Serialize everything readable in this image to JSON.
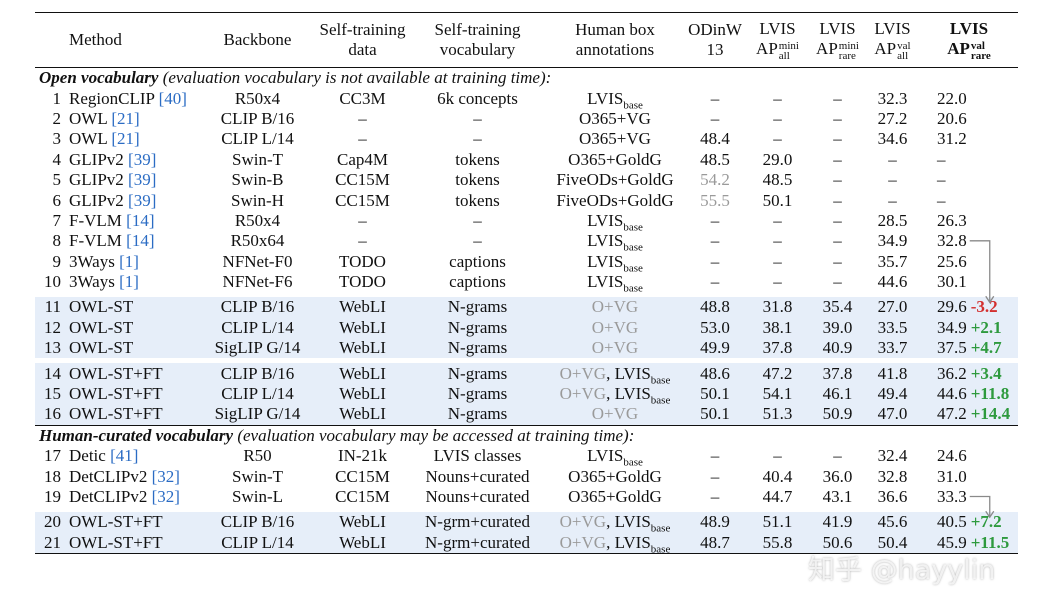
{
  "table": {
    "columns": [
      {
        "lines": [
          "Method"
        ]
      },
      {
        "lines": [
          "Backbone"
        ]
      },
      {
        "lines": [
          "Self-training",
          "data"
        ]
      },
      {
        "lines": [
          "Self-training",
          "vocabulary"
        ]
      },
      {
        "lines": [
          "Human box",
          "annotations"
        ]
      },
      {
        "lines": [
          "ODinW",
          "13"
        ]
      },
      {
        "lines": [
          "LVIS"
        ],
        "ap": {
          "text": "AP",
          "sup": "mini",
          "sub": "all"
        }
      },
      {
        "lines": [
          "LVIS"
        ],
        "ap": {
          "text": "AP",
          "sup": "mini",
          "sub": "rare"
        }
      },
      {
        "lines": [
          "LVIS"
        ],
        "ap": {
          "text": "AP",
          "sup": "val",
          "sub": "all"
        }
      },
      {
        "lines": [
          "LVIS"
        ],
        "ap": {
          "text": "AP",
          "sup": "val",
          "sub": "rare"
        },
        "bold": true
      }
    ],
    "sections": [
      {
        "title": "Open vocabulary",
        "note": "(evaluation vocabulary is not available at training time):",
        "groups": [
          {
            "shaded": false,
            "rows": [
              [
                "1",
                "RegionCLIP",
                "[40]",
                "R50x4",
                "CC3M",
                "6k concepts",
                [
                  {
                    "text": "LVIS",
                    "sub": "base"
                  }
                ],
                "–",
                "–",
                "–",
                "32.3",
                "22.0"
              ],
              [
                "2",
                "OWL",
                "[21]",
                "CLIP B/16",
                "–",
                "–",
                [
                  {
                    "text": "O365+VG"
                  }
                ],
                "–",
                "–",
                "–",
                "27.2",
                "20.6"
              ],
              [
                "3",
                "OWL",
                "[21]",
                "CLIP L/14",
                "–",
                "–",
                [
                  {
                    "text": "O365+VG"
                  }
                ],
                "48.4",
                "–",
                "–",
                "34.6",
                "31.2"
              ],
              [
                "4",
                "GLIPv2",
                "[39]",
                "Swin-T",
                "Cap4M",
                "tokens",
                [
                  {
                    "text": "O365+GoldG"
                  }
                ],
                "48.5",
                "29.0",
                "–",
                "–",
                "–"
              ],
              [
                "5",
                "GLIPv2",
                "[39]",
                "Swin-B",
                "CC15M",
                "tokens",
                [
                  {
                    "text": "FiveODs+GoldG"
                  }
                ],
                {
                  "text": "54.2",
                  "gray": true
                },
                "48.5",
                "–",
                "–",
                "–"
              ],
              [
                "6",
                "GLIPv2",
                "[39]",
                "Swin-H",
                "CC15M",
                "tokens",
                [
                  {
                    "text": "FiveODs+GoldG"
                  }
                ],
                {
                  "text": "55.5",
                  "gray": true
                },
                "50.1",
                "–",
                "–",
                "–"
              ],
              [
                "7",
                "F-VLM",
                "[14]",
                "R50x4",
                "–",
                "–",
                [
                  {
                    "text": "LVIS",
                    "sub": "base"
                  }
                ],
                "–",
                "–",
                "–",
                "28.5",
                "26.3"
              ],
              [
                "8",
                "F-VLM",
                "[14]",
                "R50x64",
                "–",
                "–",
                [
                  {
                    "text": "LVIS",
                    "sub": "base"
                  }
                ],
                "–",
                "–",
                "–",
                "34.9",
                "32.8"
              ],
              [
                "9",
                "3Ways",
                "[1]",
                "NFNet-F0",
                "TODO",
                "captions",
                [
                  {
                    "text": "LVIS",
                    "sub": "base"
                  }
                ],
                "–",
                "–",
                "–",
                "35.7",
                "25.6"
              ],
              [
                "10",
                "3Ways",
                "[1]",
                "NFNet-F6",
                "TODO",
                "captions",
                [
                  {
                    "text": "LVIS",
                    "sub": "base"
                  }
                ],
                "–",
                "–",
                "–",
                "44.6",
                "30.1"
              ]
            ]
          },
          {
            "shaded": true,
            "rows": [
              [
                "11",
                "OWL-ST",
                null,
                "CLIP B/16",
                "WebLI",
                "N-grams",
                [
                  {
                    "text": "O+VG",
                    "gray": true
                  }
                ],
                "48.8",
                "31.8",
                "35.4",
                "27.0",
                "29.6",
                {
                  "text": "-3.2",
                  "color": "#d32f2f"
                }
              ],
              [
                "12",
                "OWL-ST",
                null,
                "CLIP L/14",
                "WebLI",
                "N-grams",
                [
                  {
                    "text": "O+VG",
                    "gray": true
                  }
                ],
                "53.0",
                "38.1",
                "39.0",
                "33.5",
                "34.9",
                {
                  "text": "+2.1",
                  "color": "#2e9a3e"
                }
              ],
              [
                "13",
                "OWL-ST",
                null,
                "SigLIP G/14",
                "WebLI",
                "N-grams",
                [
                  {
                    "text": "O+VG",
                    "gray": true
                  }
                ],
                "49.9",
                "37.8",
                "40.9",
                "33.7",
                "37.5",
                {
                  "text": "+4.7",
                  "color": "#2e9a3e"
                }
              ]
            ]
          },
          {
            "shaded": true,
            "rows": [
              [
                "14",
                "OWL-ST+FT",
                null,
                "CLIP B/16",
                "WebLI",
                "N-grams",
                [
                  {
                    "text": "O+VG",
                    "gray": true
                  },
                  {
                    "text": ", LVIS",
                    "sub": "base"
                  }
                ],
                "48.6",
                "47.2",
                "37.8",
                "41.8",
                "36.2",
                {
                  "text": "+3.4",
                  "color": "#2e9a3e"
                }
              ],
              [
                "15",
                "OWL-ST+FT",
                null,
                "CLIP L/14",
                "WebLI",
                "N-grams",
                [
                  {
                    "text": "O+VG",
                    "gray": true
                  },
                  {
                    "text": ", LVIS",
                    "sub": "base"
                  }
                ],
                "50.1",
                "54.1",
                "46.1",
                "49.4",
                "44.6",
                {
                  "text": "+11.8",
                  "color": "#2e9a3e"
                }
              ],
              [
                "16",
                "OWL-ST+FT",
                null,
                "SigLIP G/14",
                "WebLI",
                "N-grams",
                [
                  {
                    "text": "O+VG",
                    "gray": true
                  }
                ],
                "50.1",
                "51.3",
                "50.9",
                "47.0",
                "47.2",
                {
                  "text": "+14.4",
                  "color": "#2e9a3e"
                }
              ]
            ]
          }
        ]
      },
      {
        "title": "Human-curated vocabulary",
        "note": "(evaluation vocabulary may be accessed at training time):",
        "groups": [
          {
            "shaded": false,
            "rows": [
              [
                "17",
                "Detic",
                "[41]",
                "R50",
                "IN-21k",
                "LVIS classes",
                [
                  {
                    "text": "LVIS",
                    "sub": "base"
                  }
                ],
                "–",
                "–",
                "–",
                "32.4",
                "24.6"
              ],
              [
                "18",
                "DetCLIPv2",
                "[32]",
                "Swin-T",
                "CC15M",
                "Nouns+curated",
                [
                  {
                    "text": "O365+GoldG"
                  }
                ],
                "–",
                "40.4",
                "36.0",
                "32.8",
                "31.0"
              ],
              [
                "19",
                "DetCLIPv2",
                "[32]",
                "Swin-L",
                "CC15M",
                "Nouns+curated",
                [
                  {
                    "text": "O365+GoldG"
                  }
                ],
                "–",
                "44.7",
                "43.1",
                "36.6",
                "33.3"
              ]
            ]
          },
          {
            "shaded": true,
            "rows": [
              [
                "20",
                "OWL-ST+FT",
                null,
                "CLIP B/16",
                "WebLI",
                "N-grm+curated",
                [
                  {
                    "text": "O+VG",
                    "gray": true
                  },
                  {
                    "text": ", LVIS",
                    "sub": "base"
                  }
                ],
                "48.9",
                "51.1",
                "41.9",
                "45.6",
                "40.5",
                {
                  "text": "+7.2",
                  "color": "#2e9a3e"
                }
              ],
              [
                "21",
                "OWL-ST+FT",
                null,
                "CLIP L/14",
                "WebLI",
                "N-grm+curated",
                [
                  {
                    "text": "O+VG",
                    "gray": true
                  },
                  {
                    "text": ", LVIS",
                    "sub": "base"
                  }
                ],
                "48.7",
                "55.8",
                "50.6",
                "50.4",
                "45.9",
                {
                  "text": "+11.5",
                  "color": "#2e9a3e"
                }
              ]
            ]
          }
        ]
      }
    ]
  },
  "watermark": "知乎 @hayylin"
}
